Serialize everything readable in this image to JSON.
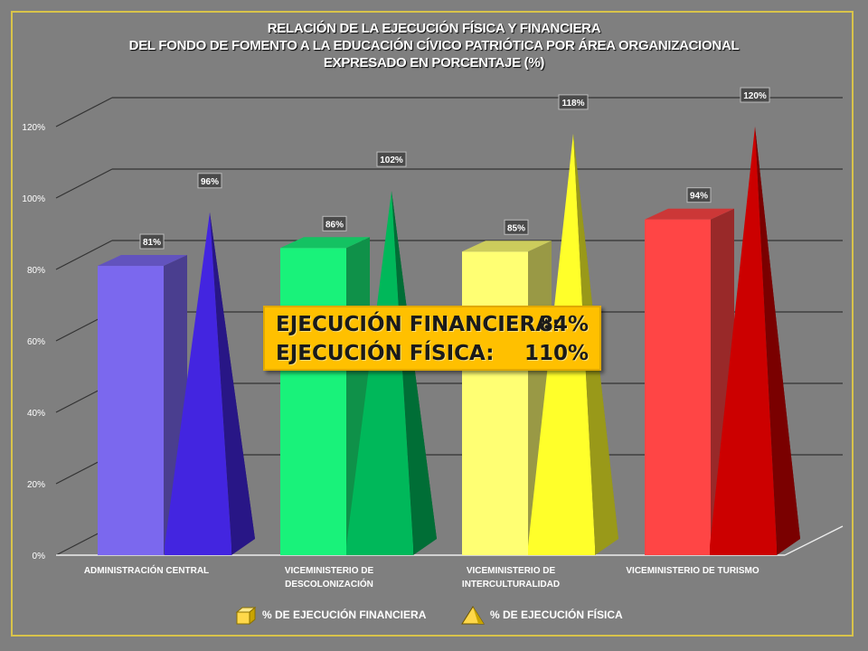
{
  "title": {
    "line1": "RELACIÓN DE LA EJECUCIÓN FÍSICA Y FINANCIERA",
    "line2": "DEL FONDO DE FOMENTO A LA EDUCACIÓN CÍVICO PATRIÓTICA POR ÁREA ORGANIZACIONAL",
    "line3": "EXPRESADO EN PORCENTAJE (%)"
  },
  "callout": {
    "financiera_label": "EJECUCIÓN FINANCIERA:",
    "financiera_value": "84%",
    "fisica_label": "EJECUCIÓN FÍSICA:",
    "fisica_value": "110%"
  },
  "legend": {
    "financiera": "% DE EJECUCIÓN FINANCIERA",
    "fisica": "% DE EJECUCIÓN FÍSICA"
  },
  "chart_data": {
    "type": "bar",
    "title": "RELACIÓN DE LA EJECUCIÓN FÍSICA Y FINANCIERA DEL FONDO DE FOMENTO A LA EDUCACIÓN CÍVICO PATRIÓTICA POR ÁREA ORGANIZACIONAL EXPRESADO EN PORCENTAJE (%)",
    "categories": [
      [
        "ADMINISTRACIÓN CENTRAL"
      ],
      [
        "VICEMINISTERIO DE",
        "DESCOLONIZACIÓN"
      ],
      [
        "VICEMINISTERIO DE",
        "INTERCULTURALIDAD"
      ],
      [
        "VICEMINISTERIO DE TURISMO"
      ]
    ],
    "series": [
      {
        "name": "% DE EJECUCIÓN FINANCIERA",
        "shape": "box",
        "values": [
          81,
          86,
          85,
          94
        ],
        "labels": [
          "81%",
          "86%",
          "85%",
          "94%"
        ]
      },
      {
        "name": "% DE EJECUCIÓN FÍSICA",
        "shape": "pyramid",
        "values": [
          96,
          102,
          118,
          120
        ],
        "labels": [
          "96%",
          "102%",
          "118%",
          "120%"
        ]
      }
    ],
    "colors": {
      "financiera": [
        "#7b68ee",
        "#19f27a",
        "#ffff73",
        "#ff4545"
      ],
      "fisica": [
        "#4325e0",
        "#00b85a",
        "#ffff2a",
        "#cc0000"
      ]
    },
    "yticks": [
      "0%",
      "20%",
      "40%",
      "60%",
      "80%",
      "100%",
      "120%"
    ],
    "ylim": [
      0,
      120
    ],
    "grid": true,
    "legend_position": "bottom"
  }
}
